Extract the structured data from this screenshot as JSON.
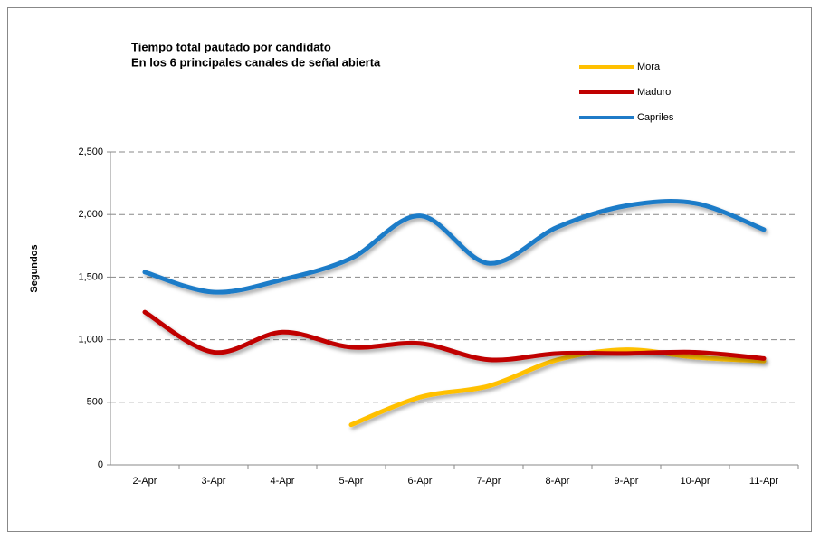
{
  "chart_data": {
    "type": "line",
    "title": "Tiempo total pautado por candidato",
    "subtitle": "En los 6 principales canales de señal abierta",
    "y_label": "Segundos",
    "categories": [
      "2-Apr",
      "3-Apr",
      "4-Apr",
      "5-Apr",
      "6-Apr",
      "7-Apr",
      "8-Apr",
      "9-Apr",
      "10-Apr",
      "11-Apr"
    ],
    "series": [
      {
        "name": "Mora",
        "color": "#ffc000",
        "values": [
          null,
          null,
          null,
          320,
          540,
          630,
          840,
          920,
          860,
          830
        ]
      },
      {
        "name": "Maduro",
        "color": "#c00000",
        "values": [
          1220,
          900,
          1060,
          940,
          970,
          840,
          890,
          890,
          900,
          850
        ]
      },
      {
        "name": "Capriles",
        "color": "#1f7bc8",
        "values": [
          1540,
          1380,
          1480,
          1650,
          1990,
          1610,
          1900,
          2070,
          2090,
          1880
        ]
      }
    ],
    "ylim": [
      0,
      2500
    ],
    "yticks": [
      0,
      500,
      {
        "value": 1000,
        "label": "1,000"
      },
      {
        "value": 1500,
        "label": "1,500"
      },
      {
        "value": 2000,
        "label": "2,000"
      },
      {
        "value": 2500,
        "label": "2,500"
      }
    ],
    "grid": true,
    "smooth": true,
    "legend": "top-right"
  }
}
